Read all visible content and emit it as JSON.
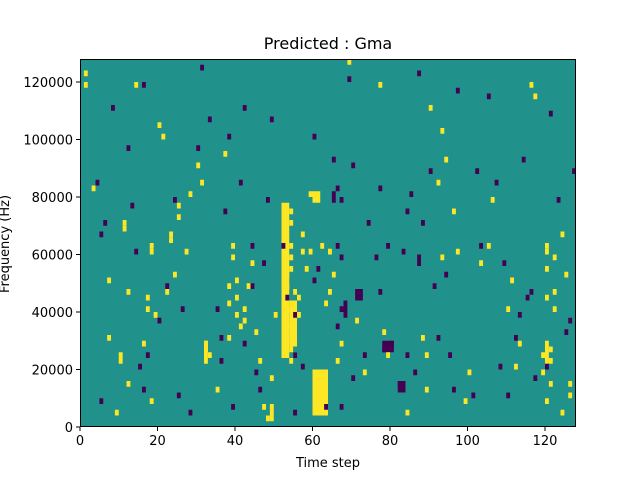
{
  "chart_data": {
    "type": "heatmap",
    "title": "Predicted : Gma",
    "xlabel": "Time step",
    "ylabel": "Frequency (Hz)",
    "xlim": [
      0,
      128
    ],
    "ylim": [
      0,
      128000
    ],
    "xticks": [
      0,
      20,
      40,
      60,
      80,
      100,
      120
    ],
    "xtick_labels": [
      "0",
      "20",
      "40",
      "60",
      "80",
      "100",
      "120"
    ],
    "yticks": [
      0,
      20000,
      40000,
      60000,
      80000,
      100000,
      120000
    ],
    "ytick_labels": [
      "0",
      "20000",
      "40000",
      "60000",
      "80000",
      "100000",
      "120000"
    ],
    "n_freq_bins": 64,
    "colormap": "viridis",
    "background_value": 0,
    "colors": {
      "background": "#21918c",
      "high": "#fde725",
      "low": "#440154"
    },
    "high_cells": [
      [
        1,
        122000
      ],
      [
        1,
        118000
      ],
      [
        3,
        82000
      ],
      [
        7,
        50000
      ],
      [
        7,
        30000
      ],
      [
        9,
        4000
      ],
      [
        10,
        24000
      ],
      [
        10,
        22000
      ],
      [
        11,
        70000
      ],
      [
        11,
        68000
      ],
      [
        12,
        14000
      ],
      [
        12,
        46000
      ],
      [
        14,
        118000
      ],
      [
        16,
        28000
      ],
      [
        17,
        44000
      ],
      [
        17,
        40000
      ],
      [
        18,
        62000
      ],
      [
        18,
        60000
      ],
      [
        18,
        8000
      ],
      [
        19,
        38000
      ],
      [
        20,
        104000
      ],
      [
        21,
        100000
      ],
      [
        22,
        46000
      ],
      [
        23,
        66000
      ],
      [
        23,
        64000
      ],
      [
        24,
        52000
      ],
      [
        25,
        76000
      ],
      [
        25,
        72000
      ],
      [
        27,
        60000
      ],
      [
        28,
        80000
      ],
      [
        30,
        90000
      ],
      [
        31,
        84000
      ],
      [
        32,
        26000
      ],
      [
        32,
        28000
      ],
      [
        33,
        24000
      ],
      [
        35,
        12000
      ],
      [
        37,
        94000
      ],
      [
        38,
        30000
      ],
      [
        38,
        48000
      ],
      [
        38,
        42000
      ],
      [
        39,
        58000
      ],
      [
        39,
        62000
      ],
      [
        40,
        50000
      ],
      [
        40,
        44000
      ],
      [
        40,
        38000
      ],
      [
        41,
        34000
      ],
      [
        42,
        36000
      ],
      [
        42,
        40000
      ],
      [
        43,
        48000
      ],
      [
        44,
        56000
      ],
      [
        45,
        32000
      ],
      [
        46,
        22000
      ],
      [
        47,
        6000
      ],
      [
        48,
        2000
      ],
      [
        49,
        16000
      ],
      [
        50,
        38000
      ],
      [
        52,
        64000
      ],
      [
        52,
        66000
      ],
      [
        52,
        70000
      ],
      [
        53,
        52000
      ],
      [
        53,
        48000
      ],
      [
        53,
        40000
      ],
      [
        53,
        34000
      ],
      [
        54,
        70000
      ],
      [
        54,
        74000
      ],
      [
        54,
        62000
      ],
      [
        54,
        58000
      ],
      [
        54,
        54000
      ],
      [
        54,
        26000
      ],
      [
        54,
        22000
      ],
      [
        55,
        46000
      ],
      [
        55,
        30000
      ],
      [
        55,
        24000
      ],
      [
        56,
        44000
      ],
      [
        56,
        38000
      ],
      [
        57,
        60000
      ],
      [
        57,
        66000
      ],
      [
        58,
        54000
      ],
      [
        59,
        80000
      ],
      [
        59,
        60000
      ],
      [
        60,
        8000
      ],
      [
        60,
        12000
      ],
      [
        60,
        16000
      ],
      [
        61,
        4000
      ],
      [
        61,
        6000
      ],
      [
        61,
        10000
      ],
      [
        61,
        12000
      ],
      [
        62,
        14000
      ],
      [
        62,
        10000
      ],
      [
        62,
        4000
      ],
      [
        63,
        42000
      ],
      [
        64,
        60000
      ],
      [
        64,
        46000
      ],
      [
        65,
        52000
      ],
      [
        66,
        22000
      ],
      [
        67,
        28000
      ],
      [
        69,
        126000
      ],
      [
        71,
        36000
      ],
      [
        73,
        18000
      ],
      [
        77,
        118000
      ],
      [
        78,
        32000
      ],
      [
        79,
        24000
      ],
      [
        84,
        4000
      ],
      [
        88,
        30000
      ],
      [
        89,
        24000
      ],
      [
        89,
        12000
      ],
      [
        90,
        110000
      ],
      [
        92,
        84000
      ],
      [
        93,
        102000
      ],
      [
        93,
        58000
      ],
      [
        94,
        92000
      ],
      [
        96,
        74000
      ],
      [
        97,
        60000
      ],
      [
        99,
        8000
      ],
      [
        100,
        18000
      ],
      [
        103,
        56000
      ],
      [
        105,
        62000
      ],
      [
        106,
        78000
      ],
      [
        110,
        40000
      ],
      [
        111,
        50000
      ],
      [
        112,
        20000
      ],
      [
        113,
        28000
      ],
      [
        116,
        118000
      ],
      [
        117,
        114000
      ],
      [
        119,
        18000
      ],
      [
        119,
        24000
      ],
      [
        120,
        54000
      ],
      [
        120,
        60000
      ],
      [
        120,
        62000
      ],
      [
        120,
        44000
      ],
      [
        120,
        8000
      ],
      [
        121,
        22000
      ],
      [
        121,
        14000
      ],
      [
        121,
        26000
      ],
      [
        122,
        58000
      ],
      [
        122,
        40000
      ],
      [
        122,
        46000
      ],
      [
        124,
        66000
      ],
      [
        124,
        4000
      ],
      [
        125,
        52000
      ],
      [
        126,
        14000
      ],
      [
        126,
        10000
      ]
    ],
    "low_cells": [
      [
        4,
        84000
      ],
      [
        5,
        8000
      ],
      [
        5,
        66000
      ],
      [
        6,
        70000
      ],
      [
        8,
        110000
      ],
      [
        12,
        96000
      ],
      [
        13,
        76000
      ],
      [
        14,
        60000
      ],
      [
        15,
        20000
      ],
      [
        16,
        12000
      ],
      [
        16,
        118000
      ],
      [
        17,
        24000
      ],
      [
        20,
        36000
      ],
      [
        22,
        48000
      ],
      [
        24,
        78000
      ],
      [
        25,
        10000
      ],
      [
        26,
        40000
      ],
      [
        28,
        4000
      ],
      [
        30,
        96000
      ],
      [
        31,
        124000
      ],
      [
        33,
        106000
      ],
      [
        35,
        40000
      ],
      [
        36,
        30000
      ],
      [
        36,
        22000
      ],
      [
        37,
        74000
      ],
      [
        38,
        100000
      ],
      [
        39,
        6000
      ],
      [
        41,
        84000
      ],
      [
        42,
        28000
      ],
      [
        42,
        110000
      ],
      [
        44,
        62000
      ],
      [
        44,
        48000
      ],
      [
        45,
        18000
      ],
      [
        46,
        12000
      ],
      [
        47,
        56000
      ],
      [
        48,
        78000
      ],
      [
        49,
        106000
      ],
      [
        52,
        62000
      ],
      [
        53,
        44000
      ],
      [
        55,
        24000
      ],
      [
        55,
        38000
      ],
      [
        55,
        4000
      ],
      [
        57,
        20000
      ],
      [
        60,
        100000
      ],
      [
        60,
        50000
      ],
      [
        61,
        54000
      ],
      [
        63,
        6000
      ],
      [
        65,
        92000
      ],
      [
        66,
        82000
      ],
      [
        66,
        62000
      ],
      [
        66,
        34000
      ],
      [
        67,
        78000
      ],
      [
        67,
        58000
      ],
      [
        67,
        40000
      ],
      [
        67,
        6000
      ],
      [
        69,
        120000
      ],
      [
        70,
        90000
      ],
      [
        70,
        16000
      ],
      [
        73,
        24000
      ],
      [
        74,
        70000
      ],
      [
        76,
        58000
      ],
      [
        77,
        82000
      ],
      [
        77,
        46000
      ],
      [
        78,
        26000
      ],
      [
        79,
        62000
      ],
      [
        80,
        28000
      ],
      [
        82,
        14000
      ],
      [
        83,
        60000
      ],
      [
        84,
        24000
      ],
      [
        84,
        74000
      ],
      [
        85,
        80000
      ],
      [
        86,
        18000
      ],
      [
        87,
        122000
      ],
      [
        88,
        70000
      ],
      [
        90,
        88000
      ],
      [
        91,
        48000
      ],
      [
        92,
        30000
      ],
      [
        94,
        52000
      ],
      [
        95,
        24000
      ],
      [
        96,
        12000
      ],
      [
        97,
        116000
      ],
      [
        101,
        10000
      ],
      [
        102,
        88000
      ],
      [
        103,
        62000
      ],
      [
        105,
        114000
      ],
      [
        107,
        84000
      ],
      [
        108,
        20000
      ],
      [
        109,
        56000
      ],
      [
        110,
        10000
      ],
      [
        112,
        30000
      ],
      [
        113,
        38000
      ],
      [
        114,
        92000
      ],
      [
        115,
        44000
      ],
      [
        116,
        46000
      ],
      [
        117,
        16000
      ],
      [
        120,
        20000
      ],
      [
        121,
        108000
      ],
      [
        123,
        78000
      ],
      [
        125,
        32000
      ],
      [
        126,
        36000
      ],
      [
        127,
        88000
      ]
    ],
    "high_blocks": [
      {
        "x": [
          52,
          54
        ],
        "y": [
          24000,
          78000
        ]
      },
      {
        "x": [
          54,
          56
        ],
        "y": [
          28000,
          44000
        ]
      },
      {
        "x": [
          60,
          64
        ],
        "y": [
          4000,
          20000
        ]
      },
      {
        "x": [
          60,
          62
        ],
        "y": [
          78000,
          82000
        ]
      },
      {
        "x": [
          62,
          63
        ],
        "y": [
          62000,
          64000
        ]
      },
      {
        "x": [
          32,
          33
        ],
        "y": [
          22000,
          30000
        ]
      },
      {
        "x": [
          49,
          50
        ],
        "y": [
          2000,
          8000
        ]
      },
      {
        "x": [
          120,
          121
        ],
        "y": [
          22000,
          30000
        ]
      }
    ],
    "low_blocks": [
      {
        "x": [
          78,
          81
        ],
        "y": [
          26000,
          30000
        ]
      },
      {
        "x": [
          82,
          84
        ],
        "y": [
          12000,
          16000
        ]
      },
      {
        "x": [
          87,
          88
        ],
        "y": [
          56000,
          60000
        ]
      },
      {
        "x": [
          71,
          73
        ],
        "y": [
          44000,
          48000
        ]
      },
      {
        "x": [
          68,
          69
        ],
        "y": [
          38000,
          44000
        ]
      },
      {
        "x": [
          65,
          66
        ],
        "y": [
          78000,
          82000
        ]
      }
    ]
  }
}
